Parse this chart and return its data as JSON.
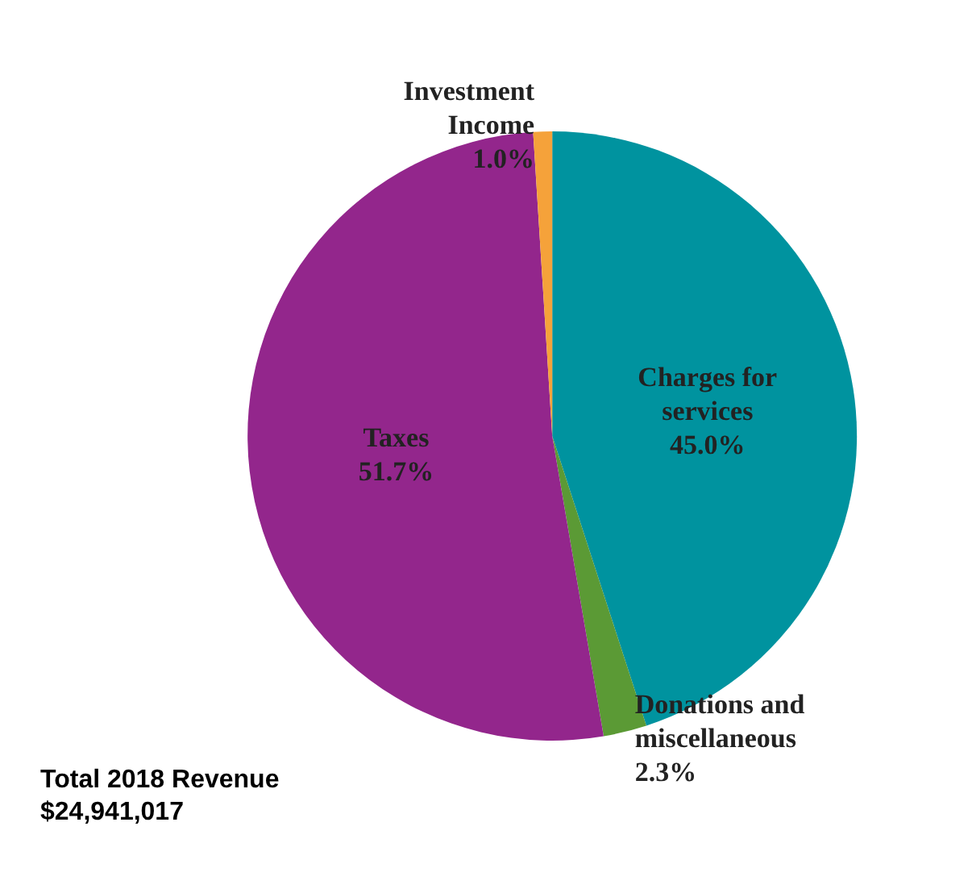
{
  "chart_data": {
    "type": "pie",
    "categories": [
      "Charges for\nservices",
      "Donations and\nmiscellaneous",
      "Taxes",
      "Investment\nIncome"
    ],
    "values": [
      45.0,
      2.3,
      51.7,
      1.0
    ],
    "value_labels": [
      "45.0%",
      "2.3%",
      "51.7%",
      "1.0%"
    ],
    "colors": [
      "#00939f",
      "#5b9a35",
      "#93268c",
      "#f5a23a"
    ],
    "annotations": [
      "Total 2018 Revenue\n$24,941,017"
    ],
    "legend": false
  }
}
